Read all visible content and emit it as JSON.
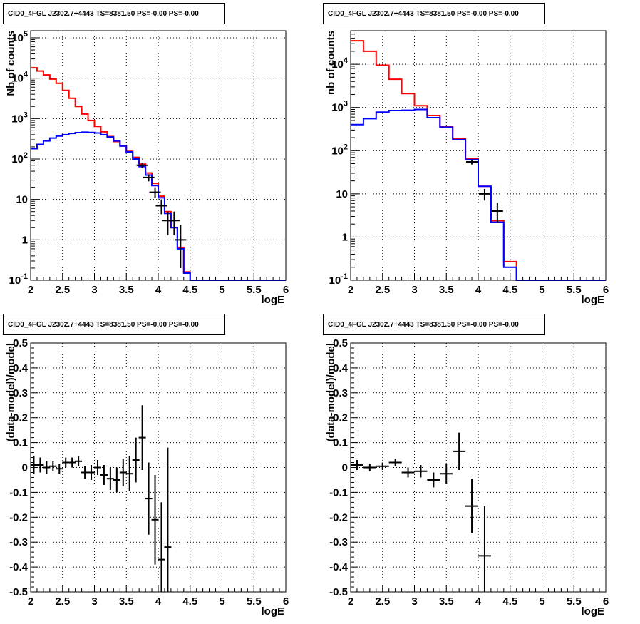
{
  "chart_data": [
    {
      "type": "histogram",
      "title": "CID0_4FGL J2302.7+4443 TS=8381.50 PS=-0.00 PS=-0.00",
      "xlabel": "logE",
      "ylabel": "Nb of counts",
      "xlim": [
        2,
        6
      ],
      "ylim": [
        0.1,
        150000
      ],
      "yscale": "log",
      "xticks": [
        "2",
        "2.5",
        "3",
        "3.5",
        "4",
        "4.5",
        "5",
        "5.5",
        "6"
      ],
      "yticks": [
        "10^-1",
        "1",
        "10",
        "10^2",
        "10^3",
        "10^4",
        "10^5"
      ],
      "grid": true,
      "bin_edges": [
        2.0,
        2.1,
        2.2,
        2.3,
        2.4,
        2.5,
        2.6,
        2.7,
        2.8,
        2.9,
        3.0,
        3.1,
        3.2,
        3.3,
        3.4,
        3.5,
        3.6,
        3.7,
        3.8,
        3.9,
        4.0,
        4.1,
        4.2,
        4.3,
        4.4,
        4.5,
        4.6,
        4.7,
        4.8,
        4.9,
        5.0,
        5.1,
        5.2,
        5.3,
        5.4,
        5.5,
        5.6,
        5.7,
        5.8,
        5.9,
        6.0
      ],
      "series": [
        {
          "color": "#ff0000",
          "kind": "step",
          "values": [
            18000,
            15000,
            12000,
            9500,
            7500,
            5000,
            3200,
            2000,
            1300,
            900,
            640,
            470,
            360,
            270,
            210,
            155,
            110,
            75,
            45,
            25,
            12,
            5,
            2,
            0.65,
            0.16,
            0.1,
            0.1,
            0.1,
            0.1,
            0.1,
            0.1,
            0.1,
            0.1,
            0.1,
            0.1,
            0.1,
            0.1,
            0.1,
            0.1,
            0.1
          ]
        },
        {
          "color": "#0000ff",
          "kind": "step",
          "values": [
            180,
            230,
            280,
            330,
            370,
            400,
            430,
            450,
            460,
            455,
            440,
            400,
            350,
            280,
            210,
            150,
            100,
            65,
            40,
            22,
            11,
            4.5,
            2,
            0.6,
            0.15,
            0.1,
            0.1,
            0.1,
            0.1,
            0.1,
            0.1,
            0.1,
            0.1,
            0.1,
            0.1,
            0.1,
            0.1,
            0.1,
            0.1,
            0.1
          ]
        },
        {
          "color": "#000000",
          "kind": "errorbar",
          "points": [
            {
              "x": 3.75,
              "y": 70,
              "lo": 60,
              "hi": 80
            },
            {
              "x": 3.85,
              "y": 35,
              "lo": 28,
              "hi": 42
            },
            {
              "x": 3.95,
              "y": 15,
              "lo": 11,
              "hi": 20
            },
            {
              "x": 4.05,
              "y": 7,
              "lo": 4.3,
              "hi": 10
            },
            {
              "x": 4.15,
              "y": 3,
              "lo": 1.3,
              "hi": 5
            },
            {
              "x": 4.25,
              "y": 3,
              "lo": 1.3,
              "hi": 5
            },
            {
              "x": 4.35,
              "y": 1,
              "lo": 0.2,
              "hi": 2.3
            }
          ]
        }
      ]
    },
    {
      "type": "histogram",
      "title": "CID0_4FGL J2302.7+4443 TS=8381.50 PS=-0.00 PS=-0.00",
      "xlabel": "logE",
      "ylabel": "nb of counts",
      "xlim": [
        2,
        6
      ],
      "ylim": [
        0.1,
        60000
      ],
      "yscale": "log",
      "xticks": [
        "2",
        "2.5",
        "3",
        "3.5",
        "4",
        "4.5",
        "5",
        "5.5",
        "6"
      ],
      "yticks": [
        "10^-1",
        "1",
        "10",
        "10^2",
        "10^3",
        "10^4"
      ],
      "grid": true,
      "bin_edges": [
        2.0,
        2.2,
        2.4,
        2.6,
        2.8,
        3.0,
        3.2,
        3.4,
        3.6,
        3.8,
        4.0,
        4.2,
        4.4,
        4.6,
        4.8,
        5.0,
        5.2,
        5.4,
        5.6,
        5.8,
        6.0
      ],
      "series": [
        {
          "color": "#ff0000",
          "kind": "step",
          "values": [
            35000,
            20000,
            9500,
            4500,
            2100,
            1100,
            650,
            360,
            190,
            65,
            15,
            2.4,
            0.27,
            0.1,
            0.1,
            0.1,
            0.1,
            0.1,
            0.1,
            0.1
          ]
        },
        {
          "color": "#0000ff",
          "kind": "step",
          "values": [
            400,
            550,
            780,
            850,
            860,
            900,
            580,
            350,
            180,
            62,
            15,
            2.2,
            0.2,
            0.1,
            0.1,
            0.1,
            0.1,
            0.1,
            0.1,
            0.1
          ]
        },
        {
          "color": "#000000",
          "kind": "errorbar",
          "points": [
            {
              "x": 3.9,
              "y": 55,
              "lo": 48,
              "hi": 63
            },
            {
              "x": 4.1,
              "y": 10,
              "lo": 7,
              "hi": 13
            },
            {
              "x": 4.3,
              "y": 4,
              "lo": 2.2,
              "hi": 6.2
            }
          ]
        }
      ]
    },
    {
      "type": "errorbar",
      "title": "CID0_4FGL J2302.7+4443 TS=8381.50 PS=-0.00 PS=-0.00",
      "xlabel": "logE",
      "ylabel": "(data-model)/model",
      "xlim": [
        2,
        6
      ],
      "ylim": [
        -0.5,
        0.5
      ],
      "xticks": [
        "2",
        "2.5",
        "3",
        "3.5",
        "4",
        "4.5",
        "5",
        "5.5",
        "6"
      ],
      "yticks": [
        "-0.5",
        "-0.4",
        "-0.3",
        "-0.2",
        "-0.1",
        "0",
        "0.1",
        "0.2",
        "0.3",
        "0.4",
        "0.5"
      ],
      "grid": true,
      "points": [
        {
          "x": 2.05,
          "y": 0.01,
          "ey": 0.035
        },
        {
          "x": 2.15,
          "y": 0.01,
          "ey": 0.03
        },
        {
          "x": 2.25,
          "y": 0.0,
          "ey": 0.025
        },
        {
          "x": 2.35,
          "y": 0.005,
          "ey": 0.02
        },
        {
          "x": 2.45,
          "y": -0.005,
          "ey": 0.02
        },
        {
          "x": 2.55,
          "y": 0.02,
          "ey": 0.02
        },
        {
          "x": 2.65,
          "y": 0.02,
          "ey": 0.02
        },
        {
          "x": 2.75,
          "y": 0.025,
          "ey": 0.02
        },
        {
          "x": 2.85,
          "y": -0.02,
          "ey": 0.025
        },
        {
          "x": 2.95,
          "y": -0.02,
          "ey": 0.03
        },
        {
          "x": 3.05,
          "y": 0.0,
          "ey": 0.03
        },
        {
          "x": 3.15,
          "y": -0.03,
          "ey": 0.04
        },
        {
          "x": 3.25,
          "y": -0.045,
          "ey": 0.045
        },
        {
          "x": 3.35,
          "y": -0.05,
          "ey": 0.05
        },
        {
          "x": 3.45,
          "y": -0.02,
          "ey": 0.055
        },
        {
          "x": 3.55,
          "y": -0.025,
          "ey": 0.07
        },
        {
          "x": 3.65,
          "y": 0.03,
          "ey": 0.09
        },
        {
          "x": 3.75,
          "y": 0.12,
          "ey": 0.13
        },
        {
          "x": 3.85,
          "y": -0.125,
          "ey": 0.145
        },
        {
          "x": 3.95,
          "y": -0.21,
          "ey": 0.18
        },
        {
          "x": 4.05,
          "y": -0.37,
          "ey": 0.23
        },
        {
          "x": 4.15,
          "y": -0.32,
          "ey": 0.4
        }
      ]
    },
    {
      "type": "errorbar",
      "title": "CID0_4FGL J2302.7+4443 TS=8381.50 PS=-0.00 PS=-0.00",
      "xlabel": "logE",
      "ylabel": "(data-model)/model",
      "xlim": [
        2,
        6
      ],
      "ylim": [
        -0.5,
        0.5
      ],
      "xticks": [
        "2",
        "2.5",
        "3",
        "3.5",
        "4",
        "4.5",
        "5",
        "5.5",
        "6"
      ],
      "yticks": [
        "-0.5",
        "-0.4",
        "-0.3",
        "-0.2",
        "-0.1",
        "0",
        "0.1",
        "0.2",
        "0.3",
        "0.4",
        "0.5"
      ],
      "grid": true,
      "points": [
        {
          "x": 2.1,
          "y": 0.01,
          "ey": 0.02
        },
        {
          "x": 2.3,
          "y": 0.0,
          "ey": 0.015
        },
        {
          "x": 2.5,
          "y": 0.005,
          "ey": 0.015
        },
        {
          "x": 2.7,
          "y": 0.02,
          "ey": 0.015
        },
        {
          "x": 2.9,
          "y": -0.02,
          "ey": 0.02
        },
        {
          "x": 3.1,
          "y": -0.015,
          "ey": 0.025
        },
        {
          "x": 3.3,
          "y": -0.05,
          "ey": 0.03
        },
        {
          "x": 3.5,
          "y": -0.025,
          "ey": 0.04
        },
        {
          "x": 3.7,
          "y": 0.065,
          "ey": 0.075
        },
        {
          "x": 3.9,
          "y": -0.155,
          "ey": 0.11
        },
        {
          "x": 4.1,
          "y": -0.355,
          "ey": 0.2
        }
      ]
    }
  ]
}
